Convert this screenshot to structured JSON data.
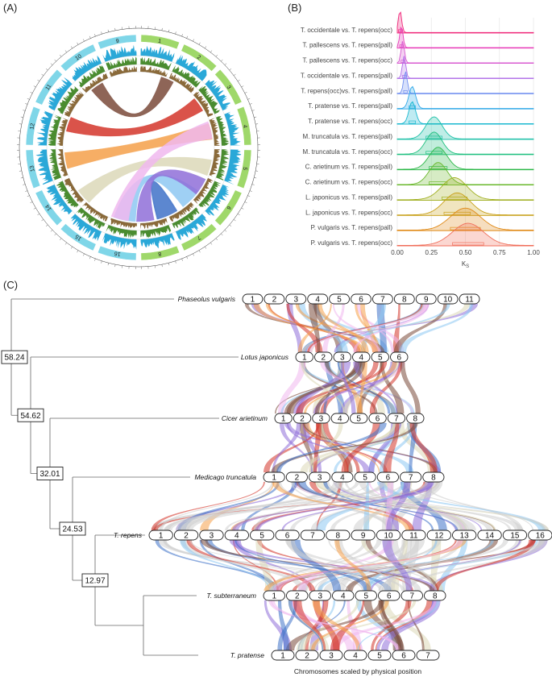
{
  "panels": {
    "a": "(A)",
    "b": "(B)",
    "c": "(C)"
  },
  "colors": {
    "circos_cyan": "#7fd6e8",
    "circos_green": "#9fd86a",
    "ribbon_brown": "#7a4a3a",
    "ribbon_red": "#d4352a",
    "ribbon_orange": "#f5a04a",
    "ribbon_beige": "#dcd8b8",
    "ribbon_lightblue": "#8ec8f2",
    "ribbon_blue": "#3f72c8",
    "ribbon_purple": "#8f6fd8",
    "ribbon_pink": "#f0b8ee",
    "ribbon_grey": "#cfcfcf"
  },
  "circos": {
    "left_chromosomes": [
      "9",
      "10",
      "11",
      "12",
      "13",
      "14",
      "15",
      "16"
    ],
    "right_chromosomes": [
      "1",
      "2",
      "3",
      "4",
      "5",
      "6",
      "7",
      "8"
    ]
  },
  "ks_plot": {
    "xlabel": "K",
    "xlabel_sub": "S",
    "xticks": [
      "0.00",
      "0.25",
      "0.50",
      "0.75",
      "1.00"
    ],
    "comparisons": [
      {
        "label": "T. occidentale vs. T. repens(occ)",
        "peak": 0.02,
        "color": "#f0287a"
      },
      {
        "label": "T. pallescens vs. T. repens(pall)",
        "peak": 0.03,
        "color": "#e63ab8"
      },
      {
        "label": "T. pallescens vs. T. repens(occ)",
        "peak": 0.04,
        "color": "#d85ad0"
      },
      {
        "label": "T. occidentale vs. T. repens(pall)",
        "peak": 0.05,
        "color": "#b06ee8"
      },
      {
        "label": "T. repens(occ)vs. T. repens(pall)",
        "peak": 0.06,
        "color": "#6f8ef0"
      },
      {
        "label": "T. pratense vs. T. repens(pall)",
        "peak": 0.11,
        "color": "#2fa8e8"
      },
      {
        "label": "T. pratense vs. T. repens(occ)",
        "peak": 0.11,
        "color": "#18b8d0"
      },
      {
        "label": "M. truncatula vs. T. repens(pall)",
        "peak": 0.27,
        "color": "#1cc0a8"
      },
      {
        "label": "M. truncatula vs. T. repens(occ)",
        "peak": 0.27,
        "color": "#20c080"
      },
      {
        "label": "C. arietinum vs. T. repens(pall)",
        "peak": 0.3,
        "color": "#2cb848"
      },
      {
        "label": "C. arietinum vs. T. repens(occ)",
        "peak": 0.3,
        "color": "#6ab82c"
      },
      {
        "label": "L. japonicus vs. T. repens(pall)",
        "peak": 0.42,
        "color": "#a0b020"
      },
      {
        "label": "L. japonicus vs. T. repens(occ)",
        "peak": 0.44,
        "color": "#c8a018"
      },
      {
        "label": "P. vulgaris vs. T. repens(pall)",
        "peak": 0.5,
        "color": "#e08a18"
      },
      {
        "label": "P. vulgaris vs. T. repens(occ)",
        "peak": 0.52,
        "color": "#f06e5a"
      }
    ]
  },
  "synteny": {
    "caption": "Chromosomes scaled by physical position",
    "species": [
      {
        "name": "Phaseolus vulgaris",
        "chromosomes": [
          "1",
          "2",
          "3",
          "4",
          "5",
          "6",
          "7",
          "8",
          "9",
          "10",
          "11"
        ]
      },
      {
        "name": "Lotus japonicus",
        "chromosomes": [
          "1",
          "2",
          "3",
          "4",
          "5",
          "6"
        ]
      },
      {
        "name": "Cicer arietinum",
        "chromosomes": [
          "1",
          "2",
          "3",
          "4",
          "5",
          "6",
          "7",
          "8"
        ]
      },
      {
        "name": "Medicago truncatula",
        "chromosomes": [
          "1",
          "2",
          "3",
          "4",
          "5",
          "6",
          "7",
          "8"
        ]
      },
      {
        "name": "T. repens",
        "chromosomes": [
          "1",
          "2",
          "3",
          "4",
          "5",
          "6",
          "7",
          "8",
          "9",
          "10",
          "11",
          "12",
          "13",
          "14",
          "15",
          "16"
        ]
      },
      {
        "name": "T. subterraneum",
        "chromosomes": [
          "1",
          "2",
          "3",
          "4",
          "5",
          "6",
          "7",
          "8"
        ]
      },
      {
        "name": "T. pratense",
        "chromosomes": [
          "1",
          "2",
          "3",
          "4",
          "5",
          "6",
          "7"
        ]
      }
    ],
    "divergence_nodes": [
      "58.24",
      "54.62",
      "32.01",
      "24.53",
      "12.97"
    ]
  }
}
